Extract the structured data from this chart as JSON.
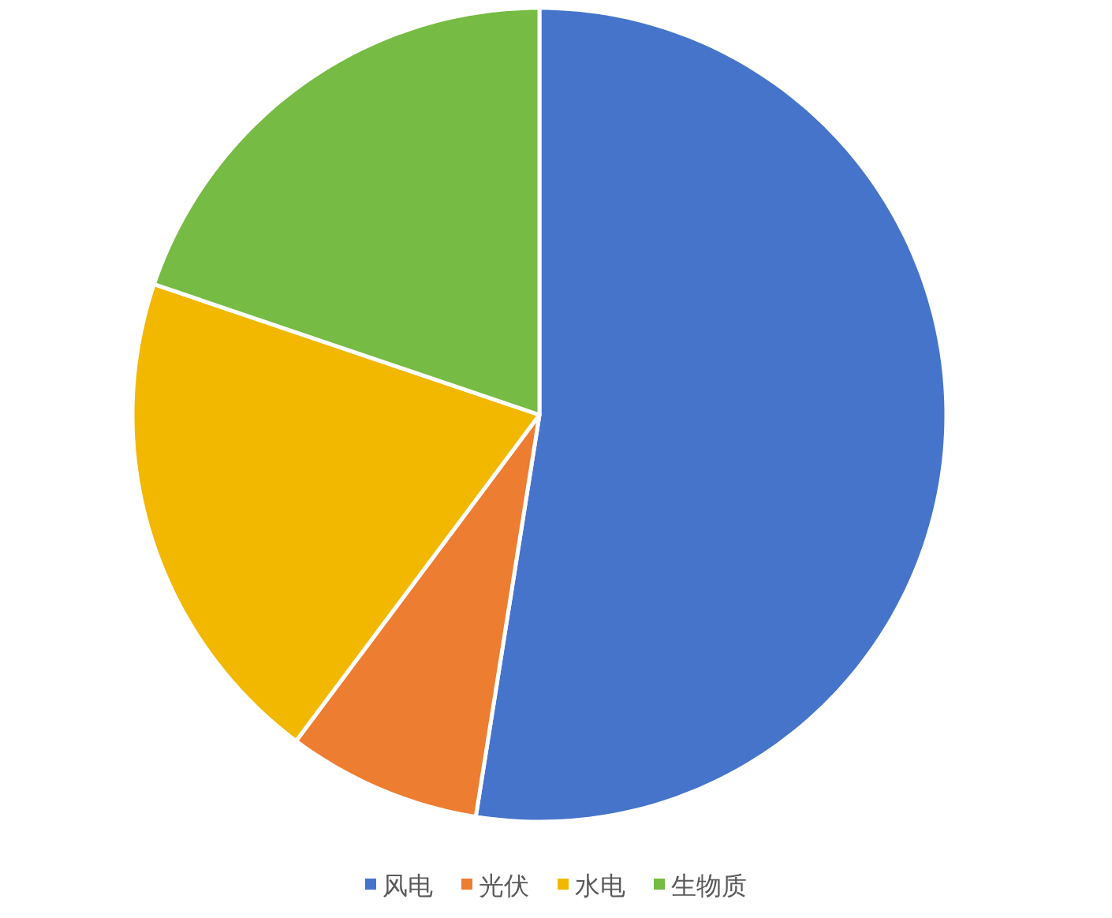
{
  "chart_data": {
    "type": "pie",
    "categories": [
      "风电",
      "光伏",
      "水电",
      "生物质"
    ],
    "values": [
      52.5,
      7.7,
      20,
      19.8
    ],
    "colors": [
      "#4674cb",
      "#ed7d31",
      "#f2b800",
      "#76bb43"
    ],
    "legend": "bottom"
  }
}
